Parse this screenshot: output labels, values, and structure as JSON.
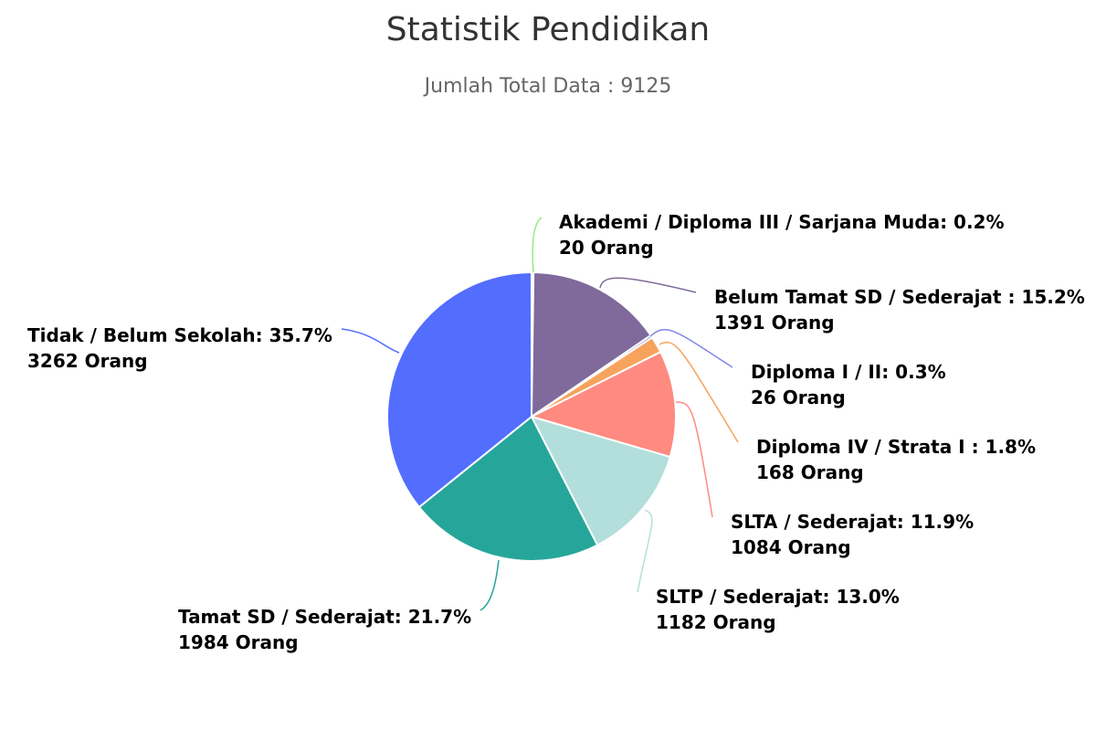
{
  "chart_data": {
    "type": "pie",
    "title": "Statistik Pendidikan",
    "subtitle": "Jumlah Total Data : 9125",
    "count_suffix": "Orang",
    "slices": [
      {
        "name": "Akademi / Diploma III / Sarjana Muda",
        "percent_label": "0.2%",
        "value": 20,
        "color": "#90ed7d"
      },
      {
        "name": "Belum Tamat SD / Sederajat ",
        "percent_label": "15.2%",
        "value": 1391,
        "color": "#7f6a9b"
      },
      {
        "name": "Diploma I / II",
        "percent_label": "0.3%",
        "value": 26,
        "color": "#8085e9"
      },
      {
        "name": "Diploma IV / Strata I ",
        "percent_label": "1.8%",
        "value": 168,
        "color": "#f7a35c"
      },
      {
        "name": "SLTA / Sederajat",
        "percent_label": "11.9%",
        "value": 1084,
        "color": "#ff8a80"
      },
      {
        "name": "SLTP / Sederajat",
        "percent_label": "13.0%",
        "value": 1182,
        "color": "#b2dfdb"
      },
      {
        "name": "Tamat SD / Sederajat",
        "percent_label": "21.7%",
        "value": 1984,
        "color": "#26a69a"
      },
      {
        "name": "Tidak / Belum Sekolah",
        "percent_label": "35.7%",
        "value": 3262,
        "color": "#536dfe"
      }
    ]
  }
}
